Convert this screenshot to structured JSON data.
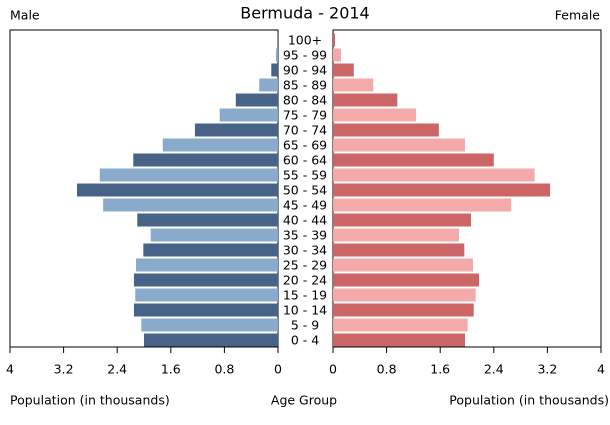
{
  "chart_data": {
    "type": "pyramid",
    "title": "Bermuda - 2014",
    "categories": [
      "0 - 4",
      "5 - 9",
      "10 - 14",
      "15 - 19",
      "20 - 24",
      "25 - 29",
      "30 - 34",
      "35 - 39",
      "40 - 44",
      "45 - 49",
      "50 - 54",
      "55 - 59",
      "60 - 64",
      "65 - 69",
      "70 - 74",
      "75 - 79",
      "80 - 84",
      "85 - 89",
      "90 - 94",
      "95 - 99",
      "100+"
    ],
    "category_label": "Age Group",
    "xlabel": "Population (in thousands)",
    "xlim": [
      0,
      4
    ],
    "xticks": [
      0,
      0.8,
      1.6,
      2.4,
      3.2,
      4
    ],
    "series": [
      {
        "name": "Male",
        "colors": [
          "#476488",
          "#8aaacb"
        ],
        "values": [
          2.0,
          2.04,
          2.15,
          2.13,
          2.15,
          2.12,
          2.01,
          1.9,
          2.1,
          2.61,
          3.0,
          2.66,
          2.16,
          1.72,
          1.24,
          0.87,
          0.63,
          0.28,
          0.1,
          0.03,
          0.01
        ]
      },
      {
        "name": "Female",
        "colors": [
          "#cc6666",
          "#f4aaaa"
        ],
        "values": [
          1.97,
          2.01,
          2.1,
          2.13,
          2.18,
          2.09,
          1.96,
          1.88,
          2.06,
          2.66,
          3.24,
          3.01,
          2.4,
          1.97,
          1.58,
          1.24,
          0.96,
          0.6,
          0.31,
          0.12,
          0.03
        ]
      }
    ]
  }
}
